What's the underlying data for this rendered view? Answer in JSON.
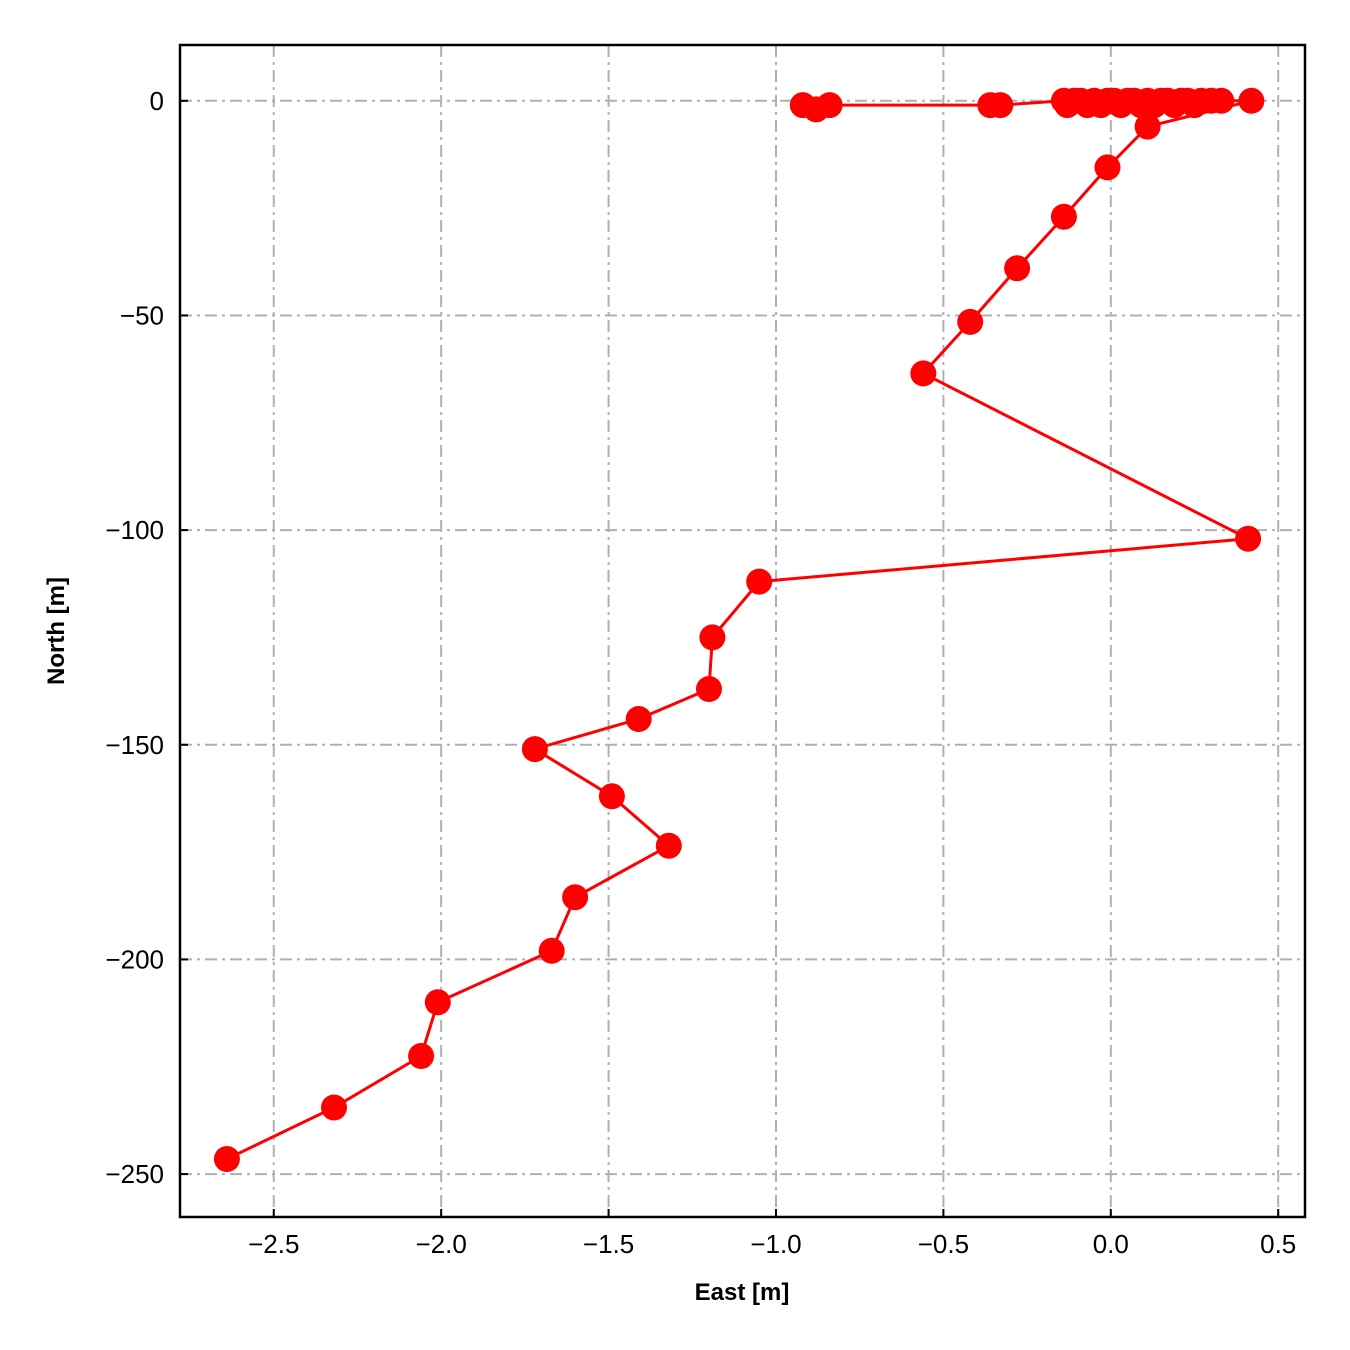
{
  "chart_data": {
    "type": "line",
    "title": "",
    "xlabel": "East [m]",
    "ylabel": "North [m]",
    "xlim": [
      -2.78,
      0.58
    ],
    "ylim": [
      -260,
      13
    ],
    "xticks": [
      -2.5,
      -2.0,
      -1.5,
      -1.0,
      -0.5,
      0.0,
      0.5
    ],
    "xtick_labels": [
      "−2.5",
      "−2.0",
      "−1.5",
      "−1.0",
      "−0.5",
      "0.0",
      "0.5"
    ],
    "yticks": [
      0,
      -50,
      -100,
      -150,
      -200,
      -250
    ],
    "ytick_labels": [
      "0",
      "−50",
      "−100",
      "−150",
      "−200",
      "−250"
    ],
    "grid": true,
    "grid_style": "dash-dot",
    "legend": "none",
    "colors": {
      "series": "#ff0000",
      "grid": "#b0b0b0",
      "axes": "#000000"
    },
    "series": [
      {
        "x": [
          -0.92,
          -0.88,
          -0.84,
          -0.36,
          -0.33,
          -0.14,
          -0.13,
          -0.11,
          -0.09,
          -0.07,
          -0.05,
          -0.03,
          -0.01,
          0.01,
          0.03,
          0.05,
          0.07,
          0.09,
          0.11,
          0.13,
          0.15,
          0.17,
          0.19,
          0.21,
          0.23,
          0.25,
          0.27,
          0.3,
          0.33,
          0.42,
          0.11,
          -0.01,
          -0.14,
          -0.28,
          -0.42,
          -0.56,
          0.41,
          -1.05,
          -1.19,
          -1.2,
          -1.41,
          -1.72,
          -1.49,
          -1.32,
          -1.6,
          -1.67,
          -2.01,
          -2.06,
          -2.32,
          -2.64
        ],
        "y": [
          -1,
          -2,
          -1,
          -1,
          -1,
          0,
          -1,
          0,
          0,
          -1,
          0,
          -1,
          0,
          0,
          -1,
          0,
          0,
          -1,
          0,
          -1,
          0,
          0,
          -1,
          0,
          0,
          -1,
          0,
          0,
          0,
          0,
          -6,
          -15.5,
          -27,
          -39,
          -51.5,
          -63.5,
          -102,
          -112,
          -125,
          -137,
          -144,
          -151,
          -162,
          -173.5,
          -185.5,
          -198,
          -210,
          -222.5,
          -234.5,
          -246.5
        ]
      }
    ]
  }
}
